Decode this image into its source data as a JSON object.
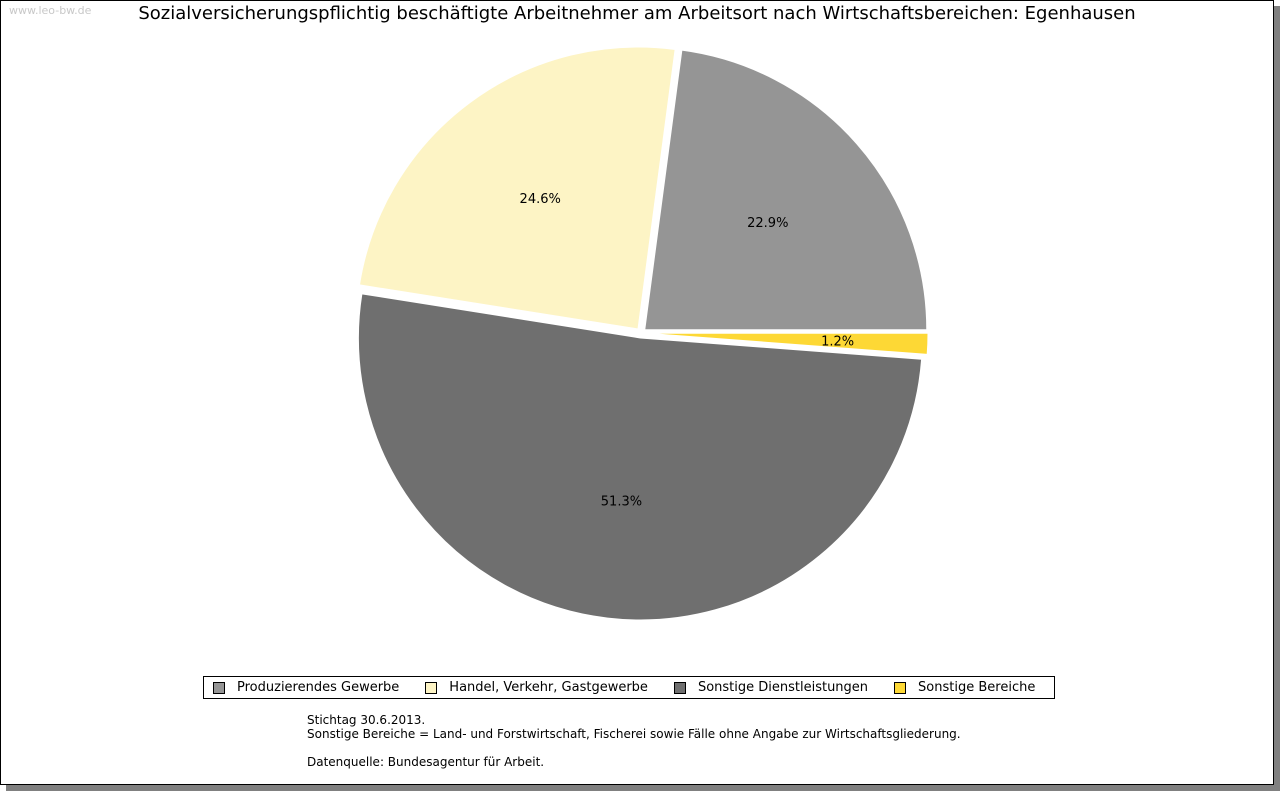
{
  "watermark": "www.leo-bw.de",
  "chart_data": {
    "type": "pie",
    "title": "Sozialversicherungspflichtig beschäftigte Arbeitnehmer am Arbeitsort nach Wirtschaftsbereichen: Egenhausen",
    "slices": [
      {
        "name": "Produzierendes Gewerbe",
        "value": 22.9,
        "label": "22.9%",
        "color": "#959595"
      },
      {
        "name": "Handel, Verkehr, Gastgewerbe",
        "value": 24.6,
        "label": "24.6%",
        "color": "#fdf4c5"
      },
      {
        "name": "Sonstige Dienstleistungen",
        "value": 51.3,
        "label": "51.3%",
        "color": "#6f6f6f"
      },
      {
        "name": "Sonstige Bereiche",
        "value": 1.2,
        "label": "1.2%",
        "color": "#fdd835"
      }
    ],
    "legend_position": "bottom"
  },
  "notes": {
    "line1": "Stichtag 30.6.2013.",
    "line2": "Sonstige Bereiche = Land- und Forstwirtschaft, Fischerei sowie Fälle ohne Angabe zur Wirtschaftsgliederung.",
    "line3": "Datenquelle: Bundesagentur für Arbeit."
  }
}
